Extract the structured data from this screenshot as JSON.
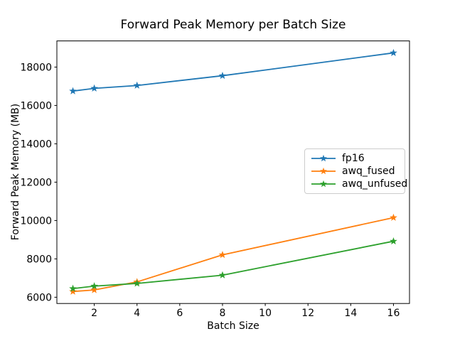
{
  "chart_data": {
    "type": "line",
    "title": "Forward Peak Memory per Batch Size",
    "xlabel": "Batch Size",
    "ylabel": "Forward Peak Memory (MB)",
    "x": [
      1,
      2,
      4,
      8,
      16
    ],
    "series": [
      {
        "name": "fp16",
        "color": "#1f77b4",
        "marker": "star",
        "values": [
          16750,
          16890,
          17040,
          17550,
          18740
        ]
      },
      {
        "name": "awq_fused",
        "color": "#ff7f0e",
        "marker": "star",
        "values": [
          6300,
          6380,
          6800,
          8210,
          10150
        ]
      },
      {
        "name": "awq_unfused",
        "color": "#2ca02c",
        "marker": "star",
        "values": [
          6450,
          6580,
          6720,
          7150,
          8920
        ]
      }
    ],
    "xticks": [
      2,
      4,
      6,
      8,
      10,
      12,
      14,
      16
    ],
    "yticks": [
      6000,
      8000,
      10000,
      12000,
      14000,
      16000,
      18000
    ],
    "xlim": [
      0.25,
      16.75
    ],
    "ylim": [
      5674,
      19364
    ],
    "grid": false,
    "legend_position": "center-right",
    "background_color": "#ffffff",
    "spine_color": "#000000"
  }
}
